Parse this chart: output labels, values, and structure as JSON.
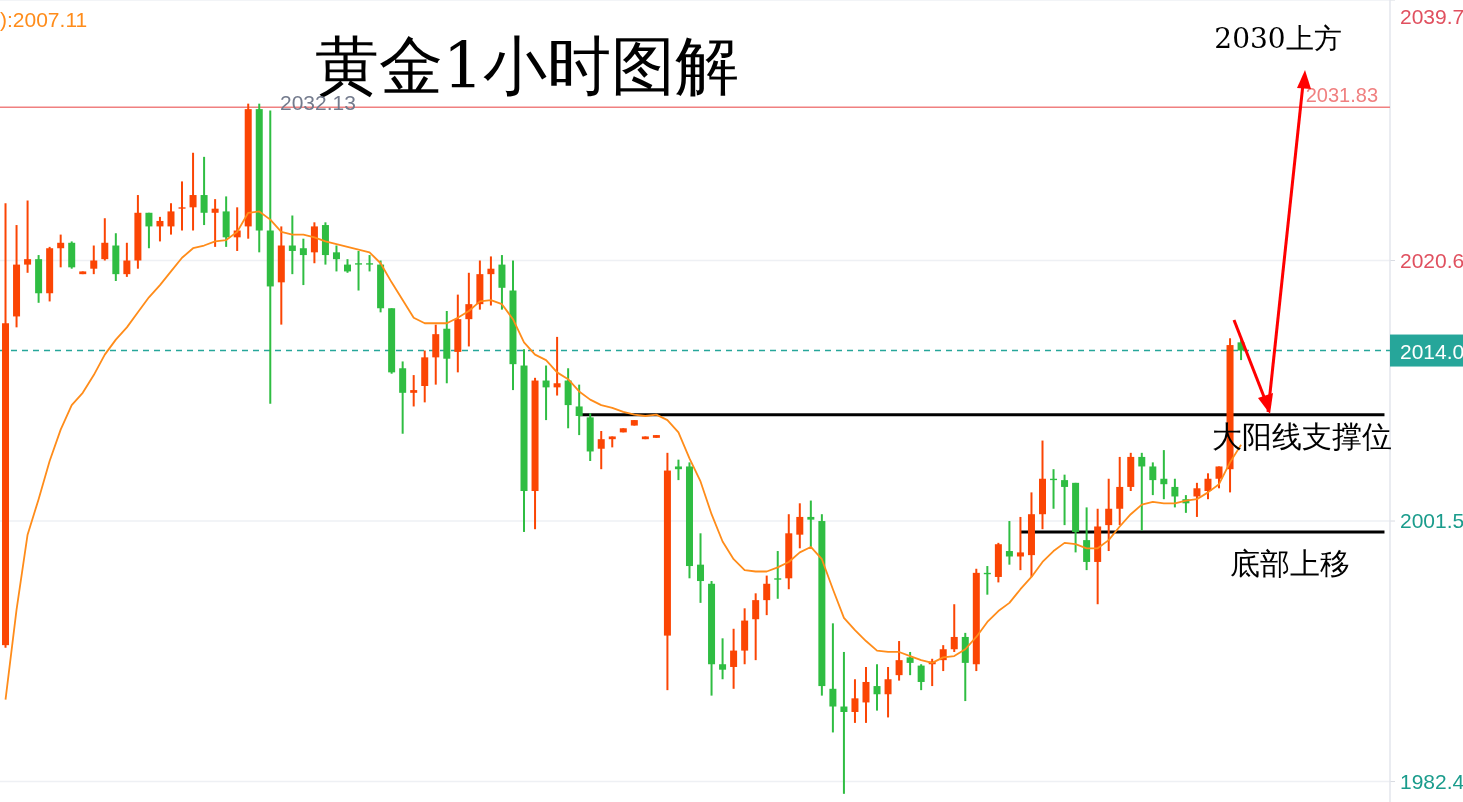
{
  "chart_data": {
    "type": "candlestick",
    "title": "黄金1小时图解",
    "categories": [
      null,
      null,
      null,
      null,
      null,
      null,
      null,
      null,
      null,
      null,
      null,
      null,
      null,
      null,
      null,
      null,
      null,
      null,
      null,
      null,
      null,
      null,
      null,
      null,
      null,
      null,
      null,
      null,
      null,
      null,
      null,
      null,
      null,
      null,
      null,
      null,
      null,
      null,
      null,
      null,
      null,
      null,
      null,
      null,
      null,
      null,
      null,
      null,
      null,
      null,
      null,
      null,
      null,
      null,
      null,
      null,
      null,
      null,
      null,
      null,
      null,
      null,
      null,
      null,
      null,
      null,
      null,
      null,
      null,
      null,
      null,
      null,
      null,
      null,
      null,
      null,
      null,
      null,
      null,
      null,
      null,
      null,
      null,
      null,
      null,
      null,
      null,
      null,
      null,
      null,
      null,
      null,
      null,
      null,
      null,
      null,
      null,
      null,
      null,
      null,
      null,
      null,
      null,
      null,
      null,
      null,
      null,
      null,
      null,
      null,
      null,
      null,
      null,
      null,
      null,
      null,
      null,
      null,
      null,
      null,
      null,
      null,
      null,
      null,
      null,
      null
    ],
    "ohlc": [
      [
        1992.4,
        2024.8,
        1992.2,
        2016.0
      ],
      [
        2016.5,
        2023.2,
        2015.7,
        2020.3
      ],
      [
        2020.3,
        2025.0,
        2019.7,
        2020.7
      ],
      [
        2020.7,
        2021.0,
        2017.5,
        2018.2
      ],
      [
        2018.2,
        2021.6,
        2017.6,
        2021.5
      ],
      [
        2021.5,
        2022.5,
        2020.1,
        2021.9
      ],
      [
        2021.9,
        2022.0,
        2020.0,
        2020.1
      ],
      [
        2019.6,
        2019.8,
        2019.6,
        2019.8
      ],
      [
        2020.0,
        2021.7,
        2019.6,
        2020.6
      ],
      [
        2020.7,
        2023.7,
        2020.6,
        2021.9
      ],
      [
        2021.7,
        2022.6,
        2019.1,
        2019.6
      ],
      [
        2019.6,
        2021.9,
        2019.4,
        2020.6
      ],
      [
        2020.6,
        2025.4,
        2020.0,
        2024.1
      ],
      [
        2024.1,
        2024.1,
        2021.5,
        2023.1
      ],
      [
        2023.1,
        2023.8,
        2022.0,
        2023.5
      ],
      [
        2023.1,
        2024.8,
        2022.5,
        2024.2
      ],
      [
        2024.4,
        2026.4,
        2022.8,
        2024.5
      ],
      [
        2024.5,
        2028.5,
        2022.8,
        2025.4
      ],
      [
        2025.4,
        2028.2,
        2023.2,
        2024.1
      ],
      [
        2024.1,
        2025.1,
        2021.6,
        2024.4
      ],
      [
        2024.2,
        2025.3,
        2021.6,
        2022.3
      ],
      [
        2022.3,
        2024.5,
        2021.3,
        2022.8
      ],
      [
        2023.1,
        2032.1,
        2022.2,
        2031.7
      ],
      [
        2031.7,
        2032.1,
        2021.2,
        2022.8
      ],
      [
        2022.8,
        2031.6,
        2010.1,
        2018.7
      ],
      [
        2019.0,
        2023.1,
        2015.9,
        2021.7
      ],
      [
        2021.7,
        2023.9,
        2019.6,
        2021.3
      ],
      [
        2021.5,
        2022.2,
        2018.8,
        2021.0
      ],
      [
        2021.2,
        2023.4,
        2020.4,
        2023.1
      ],
      [
        2023.2,
        2023.4,
        2020.3,
        2021.0
      ],
      [
        2021.2,
        2021.7,
        2019.8,
        2020.7
      ],
      [
        2020.3,
        2020.7,
        2019.7,
        2019.8
      ],
      [
        2020.4,
        2021.3,
        2018.4,
        2020.3
      ],
      [
        2020.4,
        2021.0,
        2019.8,
        2020.3
      ],
      [
        2020.3,
        2020.6,
        2016.8,
        2017.1
      ],
      [
        2017.1,
        2017.1,
        2012.3,
        2012.4
      ],
      [
        2012.7,
        2013.2,
        2007.9,
        2010.9
      ],
      [
        2010.9,
        2012.2,
        2009.9,
        2011.1
      ],
      [
        2011.4,
        2014.0,
        2010.2,
        2013.5
      ],
      [
        2013.5,
        2015.9,
        2011.5,
        2015.2
      ],
      [
        2015.6,
        2016.9,
        2011.6,
        2013.4
      ],
      [
        2013.9,
        2018.1,
        2012.4,
        2016.3
      ],
      [
        2016.3,
        2019.7,
        2014.3,
        2017.4
      ],
      [
        2017.4,
        2020.6,
        2017.0,
        2019.6
      ],
      [
        2019.6,
        2020.9,
        2017.3,
        2020.0
      ],
      [
        2020.3,
        2021.0,
        2017.0,
        2018.6
      ],
      [
        2018.4,
        2020.6,
        2011.1,
        2013.0
      ],
      [
        2012.9,
        2014.1,
        2000.7,
        2003.7
      ],
      [
        2003.7,
        2012.0,
        2000.9,
        2011.8
      ],
      [
        2011.8,
        2012.9,
        2008.9,
        2011.3
      ],
      [
        2011.3,
        2015.0,
        2010.7,
        2011.6
      ],
      [
        2011.8,
        2012.7,
        2008.3,
        2010.0
      ],
      [
        2009.9,
        2011.5,
        2007.8,
        2009.2
      ],
      [
        2009.1,
        2009.4,
        2005.9,
        2006.6
      ],
      [
        2006.8,
        2008.1,
        2005.3,
        2007.5
      ],
      [
        2007.5,
        2007.7,
        2006.9,
        2007.7
      ],
      [
        2008.0,
        2008.3,
        2008.0,
        2008.3
      ],
      [
        2008.5,
        2008.9,
        2008.5,
        2008.9
      ],
      [
        2007.5,
        2007.7,
        2007.5,
        2007.7
      ],
      [
        2007.6,
        2007.8,
        2007.6,
        2007.8
      ],
      [
        1993.1,
        2006.5,
        1989.1,
        2005.2
      ],
      [
        2005.5,
        2006.0,
        2004.5,
        2005.3
      ],
      [
        2005.5,
        2005.8,
        1997.3,
        1998.2
      ],
      [
        1998.3,
        2000.6,
        1995.5,
        1997.1
      ],
      [
        1996.9,
        1997.1,
        1988.7,
        1991.0
      ],
      [
        1991.0,
        1992.9,
        1989.9,
        1990.6
      ],
      [
        1990.8,
        1993.6,
        1989.2,
        1992.0
      ],
      [
        1992.0,
        1995.1,
        1991.0,
        1994.2
      ],
      [
        1994.3,
        1996.2,
        1991.3,
        1995.7
      ],
      [
        1995.7,
        1997.5,
        1994.6,
        1996.9
      ],
      [
        1997.3,
        1999.3,
        1995.8,
        1997.2
      ],
      [
        1997.3,
        2002.0,
        1996.5,
        2000.6
      ],
      [
        2000.5,
        2002.8,
        1999.5,
        2001.8
      ],
      [
        2001.8,
        2003.0,
        1999.6,
        2001.6
      ],
      [
        2001.5,
        2002.0,
        1988.7,
        1989.4
      ],
      [
        1989.2,
        1994.0,
        1986.0,
        1987.9
      ],
      [
        1987.9,
        1991.9,
        1981.5,
        1987.5
      ],
      [
        1987.5,
        1989.9,
        1986.7,
        1988.5
      ],
      [
        1988.2,
        1990.8,
        1986.7,
        1989.7
      ],
      [
        1989.4,
        1991.0,
        1987.6,
        1988.8
      ],
      [
        1988.8,
        1990.8,
        1987.1,
        1989.9
      ],
      [
        1990.2,
        1992.7,
        1989.8,
        1991.3
      ],
      [
        1991.5,
        1991.9,
        1990.2,
        1991.1
      ],
      [
        1990.9,
        1991.0,
        1989.1,
        1989.7
      ],
      [
        1991.0,
        1991.4,
        1989.4,
        1991.2
      ],
      [
        1991.3,
        1992.4,
        1990.5,
        1992.1
      ],
      [
        1992.1,
        1995.4,
        1991.9,
        1993.0
      ],
      [
        1993.0,
        1993.3,
        1988.3,
        1991.1
      ],
      [
        1991.0,
        1998.0,
        1990.5,
        1997.7
      ],
      [
        1997.7,
        1998.2,
        1996.1,
        1997.6
      ],
      [
        1997.4,
        1999.9,
        1997.0,
        1999.8
      ],
      [
        1999.3,
        2001.5,
        1998.3,
        1998.9
      ],
      [
        1998.9,
        2001.8,
        1997.9,
        1999.2
      ],
      [
        1999.0,
        2003.6,
        1997.4,
        2002.0
      ],
      [
        2002.0,
        2007.4,
        2000.9,
        2004.6
      ],
      [
        2004.6,
        2005.3,
        2002.4,
        2004.5
      ],
      [
        2004.5,
        2004.9,
        2001.2,
        2004.0
      ],
      [
        2004.3,
        2004.3,
        1999.2,
        2000.7
      ],
      [
        2000.1,
        2002.5,
        1997.9,
        1998.5
      ],
      [
        1998.5,
        2002.4,
        1995.4,
        2001.1
      ],
      [
        2001.2,
        2004.6,
        1999.3,
        2002.4
      ],
      [
        2002.4,
        2006.2,
        2001.2,
        2004.0
      ],
      [
        2004.0,
        2006.5,
        2003.7,
        2006.2
      ],
      [
        2006.2,
        2006.5,
        2000.8,
        2005.5
      ],
      [
        2005.5,
        2005.8,
        2003.4,
        2004.5
      ],
      [
        2004.6,
        2006.7,
        2003.1,
        2004.2
      ],
      [
        2004.0,
        2004.6,
        2002.5,
        2003.3
      ],
      [
        2003.1,
        2003.4,
        2002.1,
        2002.8
      ],
      [
        2003.3,
        2004.3,
        2001.8,
        2003.9
      ],
      [
        2003.7,
        2005.0,
        2003.1,
        2004.6
      ],
      [
        2004.6,
        2005.5,
        2003.9,
        2005.5
      ],
      [
        2005.3,
        2014.9,
        2003.6,
        2014.4
      ],
      [
        2014.6,
        2014.8,
        2013.3,
        2014.0
      ],
      null,
      null,
      null,
      null,
      null,
      null,
      null,
      null,
      null,
      null,
      null,
      null,
      null
    ],
    "series": [
      {
        "type": "line",
        "color": "#ff8c1a",
        "values": [
          1988.4,
          1995.0,
          2000.5,
          2003.1,
          2005.9,
          2008.2,
          2010.0,
          2010.9,
          2012.2,
          2013.7,
          2014.8,
          2015.7,
          2016.8,
          2017.9,
          2018.8,
          2019.8,
          2020.8,
          2021.5,
          2021.7,
          2022.0,
          2022.1,
          2022.7,
          2024.1,
          2024.2,
          2023.6,
          2022.7,
          2022.5,
          2022.5,
          2022.3,
          2022.0,
          2021.8,
          2021.6,
          2021.4,
          2021.2,
          2020.4,
          2019.0,
          2017.7,
          2016.4,
          2016.0,
          2016.0,
          2016.0,
          2016.4,
          2016.9,
          2017.6,
          2017.7,
          2017.4,
          2016.3,
          2014.6,
          2013.7,
          2013.3,
          2012.4,
          2011.9,
          2011.0,
          2010.4,
          2010.0,
          2009.8,
          2009.5,
          2009.3,
          2009.2,
          2009.3,
          2008.9,
          2008.0,
          2006.1,
          2004.4,
          2002.0,
          2000.0,
          1998.7,
          1997.9,
          1997.8,
          1997.8,
          1998.1,
          1998.5,
          1999.2,
          1999.6,
          1998.7,
          1996.5,
          1994.4,
          1993.5,
          1992.7,
          1992.0,
          1991.9,
          1991.9,
          1991.6,
          1991.3,
          1991.1,
          1991.5,
          1991.6,
          1992.1,
          1993.0,
          1994.1,
          1994.9,
          1995.5,
          1996.5,
          1997.4,
          1998.5,
          1999.3,
          1999.9,
          1999.8,
          1999.5,
          1999.5,
          2000.1,
          2001.1,
          2002.0,
          2002.7,
          2002.9,
          2002.8,
          2002.8,
          2003.0,
          2003.1,
          2003.6,
          2004.2,
          2005.8,
          2007.1,
          null,
          null,
          null,
          null,
          null,
          null,
          null,
          null,
          null,
          null,
          null,
          null,
          null
        ]
      },
      {
        "type": "line",
        "color": "#000000",
        "values": [
          null,
          null,
          null,
          null,
          null,
          null,
          null,
          null,
          null,
          null,
          null,
          null,
          null,
          null,
          null,
          null,
          null,
          null,
          null,
          null,
          null,
          null,
          null,
          null,
          null,
          null,
          null,
          null,
          null,
          null,
          null,
          null,
          null,
          null,
          null,
          null,
          null,
          null,
          null,
          null,
          null,
          null,
          null,
          null,
          null,
          null,
          null,
          null,
          null,
          null,
          null,
          null,
          2009.3,
          2009.3,
          2009.3,
          2009.3,
          2009.3,
          2009.3,
          2009.3,
          2009.3,
          2009.3,
          2009.3,
          2009.3,
          2009.3,
          2009.3,
          2009.3,
          2009.3,
          2009.3,
          2009.3,
          2009.3,
          2009.3,
          2009.3,
          2009.3,
          2009.3,
          2009.3,
          2009.3,
          2009.3,
          2009.3,
          2009.3,
          2009.3,
          2009.3,
          2009.3,
          2009.3,
          2009.3,
          2009.3,
          2009.3,
          2009.3,
          2009.3,
          2009.3,
          2009.3,
          2009.3,
          2009.3,
          2009.3,
          2009.3,
          2009.3,
          2009.3,
          2009.3,
          2009.3,
          2009.3,
          2009.3,
          2009.3,
          2009.3,
          2009.3,
          2009.3,
          2009.3,
          2009.3,
          2009.3,
          2009.3,
          2009.3,
          2009.3,
          2009.3,
          2009.3,
          2009.3,
          2009.3,
          2009.3,
          2009.3,
          2009.3,
          2009.3,
          2009.3,
          2009.3,
          2009.3,
          2009.3,
          2009.3,
          2009.3,
          2009.3,
          2009.3
        ]
      },
      {
        "type": "line",
        "color": "#000000",
        "values": [
          null,
          null,
          null,
          null,
          null,
          null,
          null,
          null,
          null,
          null,
          null,
          null,
          null,
          null,
          null,
          null,
          null,
          null,
          null,
          null,
          null,
          null,
          null,
          null,
          null,
          null,
          null,
          null,
          null,
          null,
          null,
          null,
          null,
          null,
          null,
          null,
          null,
          null,
          null,
          null,
          null,
          null,
          null,
          null,
          null,
          null,
          null,
          null,
          null,
          null,
          null,
          null,
          null,
          null,
          null,
          null,
          null,
          null,
          null,
          null,
          null,
          null,
          null,
          null,
          null,
          null,
          null,
          null,
          null,
          null,
          null,
          null,
          null,
          null,
          null,
          null,
          null,
          null,
          null,
          null,
          null,
          null,
          null,
          null,
          null,
          null,
          null,
          null,
          null,
          null,
          null,
          null,
          2000.7,
          2000.7,
          2000.7,
          2000.7,
          2000.7,
          2000.7,
          2000.7,
          2000.7,
          2000.7,
          2000.7,
          2000.7,
          2000.7,
          2000.7,
          2000.7,
          2000.7,
          2000.7,
          2000.7,
          2000.7,
          2000.7,
          2000.7,
          2000.7,
          2000.7,
          2000.7,
          2000.7,
          2000.7,
          2000.7,
          2000.7,
          2000.7,
          2000.7,
          2000.7,
          2000.7,
          2000.7,
          2000.7,
          2000.7
        ]
      }
    ],
    "ylim": [
      1980.9,
      2039.7
    ],
    "yticks": [
      2039.7,
      2020.6,
      2001.5,
      1982.4
    ],
    "grid": "y",
    "ref_lines": [
      {
        "axis": "y",
        "value": 2031.83,
        "label": "2031.83",
        "color": "#f08080",
        "line_style": "solid"
      },
      {
        "axis": "y",
        "value": 2014.0,
        "label": "2014.0",
        "color": "#26a69a",
        "line_style": "dashed"
      }
    ],
    "annotations": [
      "):2007.11",
      "2032.13",
      "2030上方",
      "大阳线支撑位",
      "底部上移"
    ]
  }
}
